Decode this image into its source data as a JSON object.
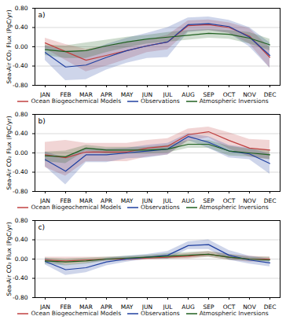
{
  "chart_data": [
    {
      "type": "line",
      "categories": [
        "JAN",
        "FEB",
        "MAR",
        "APR",
        "MAY",
        "JUN",
        "JUL",
        "AUG",
        "SEP",
        "OCT",
        "NOV",
        "DEC"
      ],
      "ylabel": "Sea-Air CO₂ Flux (PgC/yr)",
      "ylim": [
        -0.8,
        0.8
      ],
      "yticks": [
        {
          "value": -0.8,
          "label": "-0.80"
        },
        {
          "value": -0.4,
          "label": "-0.40"
        },
        {
          "value": 0.0,
          "label": "0.00"
        },
        {
          "value": 0.4,
          "label": "0.40"
        },
        {
          "value": 0.8,
          "label": "0.80"
        }
      ],
      "grid": true,
      "legend": "bottom",
      "annotations": [
        "a)"
      ],
      "series": [
        {
          "name": "Ocean Biogeochemical Models",
          "color": "#c04040",
          "values": [
            0.08,
            -0.1,
            -0.28,
            -0.18,
            -0.08,
            0.02,
            0.1,
            0.44,
            0.46,
            0.4,
            0.22,
            -0.22
          ],
          "upper": [
            0.18,
            0.05,
            -0.05,
            0.02,
            0.08,
            0.14,
            0.24,
            0.54,
            0.56,
            0.5,
            0.38,
            -0.02
          ],
          "lower": [
            -0.04,
            -0.28,
            -0.52,
            -0.4,
            -0.26,
            -0.12,
            -0.06,
            0.32,
            0.34,
            0.28,
            0.06,
            -0.44
          ]
        },
        {
          "name": "Observations",
          "color": "#2040a0",
          "values": [
            -0.12,
            -0.42,
            -0.38,
            -0.22,
            -0.08,
            0.02,
            0.1,
            0.46,
            0.48,
            0.42,
            0.2,
            -0.18
          ],
          "upper": [
            0.02,
            -0.08,
            -0.1,
            0.05,
            0.18,
            0.28,
            0.4,
            0.6,
            0.62,
            0.55,
            0.4,
            0.08
          ],
          "lower": [
            -0.28,
            -0.7,
            -0.68,
            -0.48,
            -0.34,
            -0.24,
            -0.22,
            0.3,
            0.34,
            0.28,
            0.0,
            -0.44
          ]
        },
        {
          "name": "Atmospheric Inversions",
          "color": "#206020",
          "values": [
            -0.06,
            -0.1,
            -0.08,
            0.02,
            0.1,
            0.16,
            0.2,
            0.24,
            0.28,
            0.26,
            0.18,
            0.04
          ],
          "upper": [
            0.04,
            0.02,
            0.08,
            0.14,
            0.2,
            0.24,
            0.3,
            0.34,
            0.36,
            0.34,
            0.3,
            0.16
          ],
          "lower": [
            -0.18,
            -0.24,
            -0.24,
            -0.12,
            -0.02,
            0.06,
            0.1,
            0.14,
            0.18,
            0.16,
            0.06,
            -0.08
          ]
        }
      ]
    },
    {
      "type": "line",
      "categories": [
        "JAN",
        "FEB",
        "MAR",
        "APR",
        "MAY",
        "JUN",
        "JUL",
        "AUG",
        "SEP",
        "OCT",
        "NOV",
        "DEC"
      ],
      "ylabel": "Sea-Air CO₂ Flux (PgC/yr)",
      "ylim": [
        -0.8,
        0.8
      ],
      "yticks": [
        {
          "value": -0.8,
          "label": "-0.80"
        },
        {
          "value": -0.4,
          "label": "-0.40"
        },
        {
          "value": 0.0,
          "label": "0.00"
        },
        {
          "value": 0.4,
          "label": "0.40"
        },
        {
          "value": 0.8,
          "label": "0.80"
        }
      ],
      "grid": true,
      "legend": "bottom",
      "annotations": [
        "b)"
      ],
      "series": [
        {
          "name": "Ocean Biogeochemical Models",
          "color": "#c04040",
          "values": [
            -0.04,
            -0.1,
            0.02,
            0.02,
            0.02,
            0.1,
            0.14,
            0.38,
            0.44,
            0.26,
            0.1,
            0.06
          ],
          "upper": [
            0.22,
            0.26,
            0.2,
            0.2,
            0.2,
            0.26,
            0.3,
            0.5,
            0.54,
            0.42,
            0.28,
            0.26
          ],
          "lower": [
            -0.3,
            -0.48,
            -0.18,
            -0.18,
            -0.18,
            -0.08,
            -0.04,
            0.24,
            0.32,
            0.08,
            -0.08,
            -0.14
          ]
        },
        {
          "name": "Observations",
          "color": "#2040a0",
          "values": [
            -0.14,
            -0.38,
            -0.04,
            -0.04,
            0.0,
            0.04,
            0.08,
            0.34,
            0.22,
            0.04,
            -0.02,
            -0.22
          ],
          "upper": [
            0.02,
            -0.1,
            0.1,
            0.08,
            0.1,
            0.16,
            0.2,
            0.4,
            0.34,
            0.16,
            0.1,
            -0.02
          ],
          "lower": [
            -0.28,
            -0.66,
            -0.2,
            -0.2,
            -0.12,
            -0.1,
            -0.04,
            0.26,
            0.1,
            -0.1,
            -0.14,
            -0.44
          ]
        },
        {
          "name": "Atmospheric Inversions",
          "color": "#206020",
          "values": [
            -0.06,
            -0.08,
            0.1,
            0.06,
            0.06,
            0.06,
            0.08,
            0.18,
            0.18,
            0.04,
            0.0,
            -0.04
          ],
          "upper": [
            0.02,
            0.04,
            0.16,
            0.12,
            0.12,
            0.12,
            0.16,
            0.26,
            0.26,
            0.14,
            0.08,
            0.06
          ],
          "lower": [
            -0.18,
            -0.22,
            0.04,
            -0.02,
            -0.02,
            -0.02,
            0.0,
            0.1,
            0.1,
            -0.06,
            -0.08,
            -0.14
          ]
        }
      ]
    },
    {
      "type": "line",
      "categories": [
        "JAN",
        "FEB",
        "MAR",
        "APR",
        "MAY",
        "JUN",
        "JUL",
        "AUG",
        "SEP",
        "OCT",
        "NOV",
        "DEC"
      ],
      "ylabel": "Sea-Air CO₂ Flux (PgC/yr)",
      "ylim": [
        -0.8,
        0.8
      ],
      "yticks": [
        {
          "value": -0.8,
          "label": "-0.80"
        },
        {
          "value": -0.4,
          "label": "-0.40"
        },
        {
          "value": 0.0,
          "label": "0.00"
        },
        {
          "value": 0.4,
          "label": "0.40"
        },
        {
          "value": 0.8,
          "label": "0.80"
        }
      ],
      "grid": true,
      "legend": "bottom",
      "annotations": [
        "c)"
      ],
      "series": [
        {
          "name": "Ocean Biogeochemical Models",
          "color": "#c04040",
          "values": [
            -0.02,
            -0.04,
            -0.02,
            0.0,
            0.0,
            0.02,
            0.04,
            0.06,
            0.1,
            0.04,
            0.0,
            0.0
          ],
          "upper": [
            0.04,
            0.04,
            0.04,
            0.04,
            0.04,
            0.06,
            0.08,
            0.12,
            0.16,
            0.1,
            0.06,
            0.04
          ],
          "lower": [
            -0.06,
            -0.12,
            -0.08,
            -0.04,
            -0.04,
            -0.02,
            0.0,
            0.0,
            0.04,
            -0.02,
            -0.06,
            -0.04
          ]
        },
        {
          "name": "Observations",
          "color": "#2040a0",
          "values": [
            -0.05,
            -0.22,
            -0.18,
            -0.06,
            0.0,
            0.04,
            0.08,
            0.28,
            0.3,
            0.08,
            -0.02,
            -0.08
          ],
          "upper": [
            0.02,
            -0.12,
            -0.08,
            0.02,
            0.06,
            0.1,
            0.16,
            0.36,
            0.4,
            0.18,
            0.06,
            0.0
          ],
          "lower": [
            -0.12,
            -0.34,
            -0.28,
            -0.14,
            -0.06,
            0.0,
            0.0,
            0.2,
            0.2,
            -0.02,
            -0.1,
            -0.16
          ]
        },
        {
          "name": "Atmospheric Inversions",
          "color": "#206020",
          "values": [
            -0.04,
            -0.06,
            -0.04,
            0.0,
            0.02,
            0.04,
            0.06,
            0.08,
            0.1,
            0.04,
            0.0,
            -0.02
          ],
          "upper": [
            0.02,
            0.0,
            0.02,
            0.04,
            0.06,
            0.08,
            0.12,
            0.14,
            0.16,
            0.1,
            0.04,
            0.04
          ],
          "lower": [
            -0.1,
            -0.14,
            -0.1,
            -0.04,
            -0.02,
            0.0,
            0.0,
            0.02,
            0.04,
            -0.02,
            -0.04,
            -0.06
          ]
        }
      ]
    }
  ]
}
